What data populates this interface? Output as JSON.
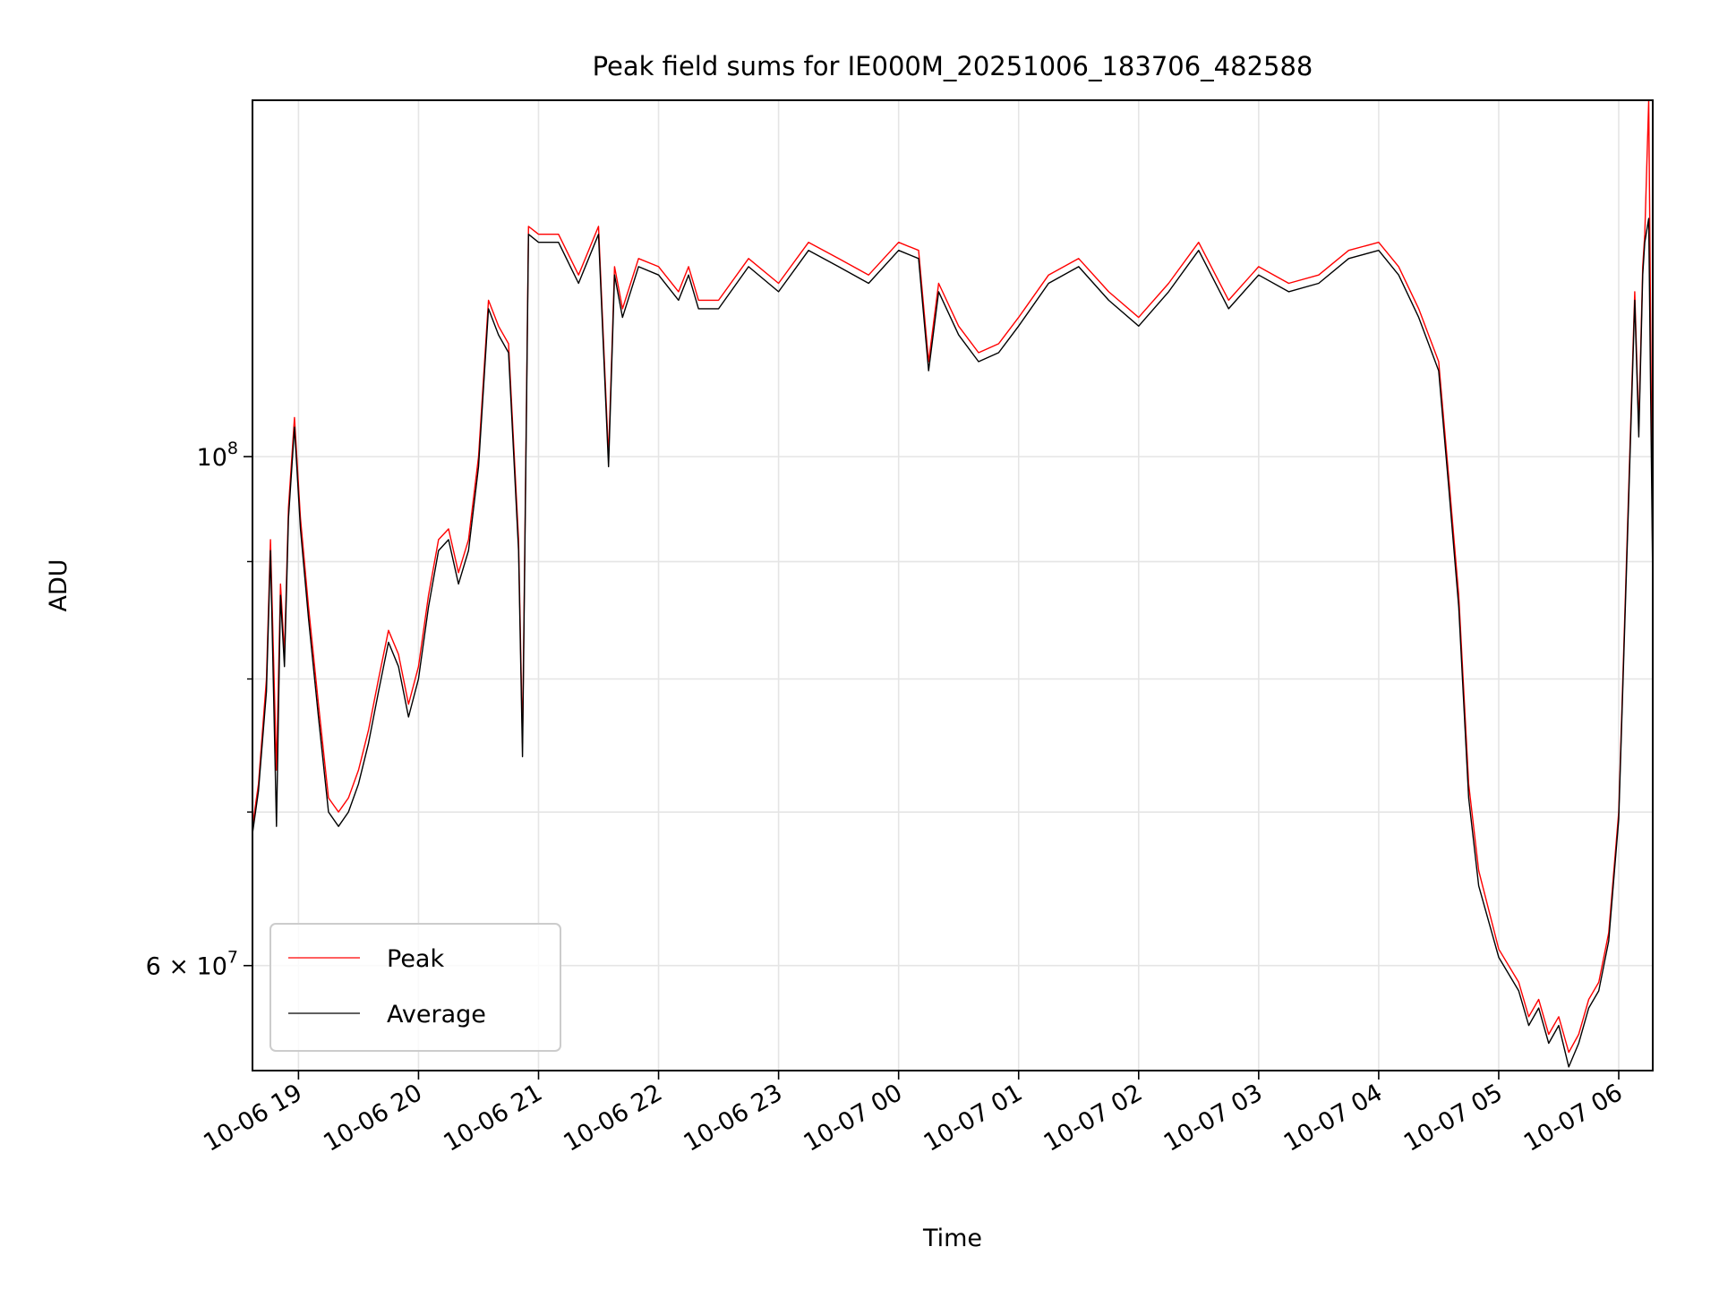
{
  "chart_data": {
    "type": "line",
    "title": "Peak field sums for IE000M_20251006_183706_482588",
    "xlabel": "Time",
    "ylabel": "ADU",
    "y_scale": "log",
    "xlim": [
      "2025-10-06 18:37",
      "2025-10-07 06:17"
    ],
    "ylim": [
      54000000,
      143000000
    ],
    "x_ticks": [
      {
        "value": "2025-10-06 19:00",
        "label": "10-06 19"
      },
      {
        "value": "2025-10-06 20:00",
        "label": "10-06 20"
      },
      {
        "value": "2025-10-06 21:00",
        "label": "10-06 21"
      },
      {
        "value": "2025-10-06 22:00",
        "label": "10-06 22"
      },
      {
        "value": "2025-10-06 23:00",
        "label": "10-06 23"
      },
      {
        "value": "2025-10-07 00:00",
        "label": "10-07 00"
      },
      {
        "value": "2025-10-07 01:00",
        "label": "10-07 01"
      },
      {
        "value": "2025-10-07 02:00",
        "label": "10-07 02"
      },
      {
        "value": "2025-10-07 03:00",
        "label": "10-07 03"
      },
      {
        "value": "2025-10-07 04:00",
        "label": "10-07 04"
      },
      {
        "value": "2025-10-07 05:00",
        "label": "10-07 05"
      },
      {
        "value": "2025-10-07 06:00",
        "label": "10-07 06"
      }
    ],
    "y_major_ticks": [
      {
        "value": 60000000,
        "base": "6 × 10",
        "exp": "7"
      },
      {
        "value": 100000000,
        "base": "10",
        "exp": "8"
      }
    ],
    "y_minor_ticks": [
      70000000,
      80000000,
      90000000
    ],
    "grid": true,
    "legend": {
      "placement": "lower-left",
      "entries": [
        "Peak",
        "Average"
      ]
    },
    "colors": {
      "Peak": "#ff0000",
      "Average": "#000000",
      "grid": "#e5e5e5"
    },
    "series": [
      {
        "name": "Peak",
        "x": [
          "2025-10-06 18:37",
          "2025-10-06 18:40",
          "2025-10-06 18:44",
          "2025-10-06 18:46",
          "2025-10-06 18:49",
          "2025-10-06 18:51",
          "2025-10-06 18:53",
          "2025-10-06 18:55",
          "2025-10-06 18:58",
          "2025-10-06 19:01",
          "2025-10-06 19:05",
          "2025-10-06 19:10",
          "2025-10-06 19:15",
          "2025-10-06 19:20",
          "2025-10-06 19:25",
          "2025-10-06 19:30",
          "2025-10-06 19:35",
          "2025-10-06 19:40",
          "2025-10-06 19:45",
          "2025-10-06 19:50",
          "2025-10-06 19:55",
          "2025-10-06 20:00",
          "2025-10-06 20:05",
          "2025-10-06 20:10",
          "2025-10-06 20:15",
          "2025-10-06 20:20",
          "2025-10-06 20:25",
          "2025-10-06 20:30",
          "2025-10-06 20:35",
          "2025-10-06 20:40",
          "2025-10-06 20:45",
          "2025-10-06 20:50",
          "2025-10-06 20:52",
          "2025-10-06 20:55",
          "2025-10-06 21:00",
          "2025-10-06 21:10",
          "2025-10-06 21:20",
          "2025-10-06 21:30",
          "2025-10-06 21:35",
          "2025-10-06 21:38",
          "2025-10-06 21:42",
          "2025-10-06 21:50",
          "2025-10-06 22:00",
          "2025-10-06 22:10",
          "2025-10-06 22:15",
          "2025-10-06 22:20",
          "2025-10-06 22:30",
          "2025-10-06 22:45",
          "2025-10-06 23:00",
          "2025-10-06 23:15",
          "2025-10-06 23:30",
          "2025-10-06 23:45",
          "2025-10-07 00:00",
          "2025-10-07 00:10",
          "2025-10-07 00:15",
          "2025-10-07 00:20",
          "2025-10-07 00:30",
          "2025-10-07 00:40",
          "2025-10-07 00:50",
          "2025-10-07 01:00",
          "2025-10-07 01:15",
          "2025-10-07 01:30",
          "2025-10-07 01:45",
          "2025-10-07 02:00",
          "2025-10-07 02:15",
          "2025-10-07 02:30",
          "2025-10-07 02:45",
          "2025-10-07 03:00",
          "2025-10-07 03:15",
          "2025-10-07 03:30",
          "2025-10-07 03:45",
          "2025-10-07 04:00",
          "2025-10-07 04:10",
          "2025-10-07 04:20",
          "2025-10-07 04:30",
          "2025-10-07 04:35",
          "2025-10-07 04:40",
          "2025-10-07 04:45",
          "2025-10-07 04:50",
          "2025-10-07 05:00",
          "2025-10-07 05:10",
          "2025-10-07 05:15",
          "2025-10-07 05:20",
          "2025-10-07 05:25",
          "2025-10-07 05:30",
          "2025-10-07 05:35",
          "2025-10-07 05:40",
          "2025-10-07 05:45",
          "2025-10-07 05:50",
          "2025-10-07 05:55",
          "2025-10-07 06:00",
          "2025-10-07 06:05",
          "2025-10-07 06:08",
          "2025-10-07 06:10",
          "2025-10-07 06:12",
          "2025-10-07 06:13",
          "2025-10-07 06:15",
          "2025-10-07 06:17"
        ],
        "y": [
          69000000,
          72000000,
          80000000,
          92000000,
          73000000,
          88000000,
          82000000,
          95000000,
          104000000,
          94000000,
          86000000,
          78000000,
          71000000,
          70000000,
          71000000,
          73000000,
          76000000,
          80000000,
          84000000,
          82000000,
          78000000,
          81000000,
          87000000,
          92000000,
          93000000,
          89000000,
          92000000,
          100000000,
          117000000,
          114000000,
          112000000,
          92000000,
          75000000,
          126000000,
          125000000,
          125000000,
          120000000,
          126000000,
          100000000,
          121000000,
          116000000,
          122000000,
          121000000,
          118000000,
          121000000,
          117000000,
          117000000,
          122000000,
          119000000,
          124000000,
          122000000,
          120000000,
          124000000,
          123000000,
          110000000,
          119000000,
          114000000,
          111000000,
          112000000,
          115000000,
          120000000,
          122000000,
          118000000,
          115000000,
          119000000,
          124000000,
          117000000,
          121000000,
          119000000,
          120000000,
          123000000,
          124000000,
          121000000,
          116000000,
          110000000,
          98000000,
          87000000,
          72000000,
          66000000,
          61000000,
          59000000,
          57000000,
          58000000,
          56000000,
          57000000,
          55000000,
          56000000,
          58000000,
          59000000,
          62000000,
          70000000,
          97000000,
          118000000,
          103000000,
          121000000,
          125000000,
          143000000,
          89000000
        ]
      },
      {
        "name": "Average",
        "x": [
          "2025-10-06 18:37",
          "2025-10-06 18:40",
          "2025-10-06 18:44",
          "2025-10-06 18:46",
          "2025-10-06 18:49",
          "2025-10-06 18:51",
          "2025-10-06 18:53",
          "2025-10-06 18:55",
          "2025-10-06 18:58",
          "2025-10-06 19:01",
          "2025-10-06 19:05",
          "2025-10-06 19:10",
          "2025-10-06 19:15",
          "2025-10-06 19:20",
          "2025-10-06 19:25",
          "2025-10-06 19:30",
          "2025-10-06 19:35",
          "2025-10-06 19:40",
          "2025-10-06 19:45",
          "2025-10-06 19:50",
          "2025-10-06 19:55",
          "2025-10-06 20:00",
          "2025-10-06 20:05",
          "2025-10-06 20:10",
          "2025-10-06 20:15",
          "2025-10-06 20:20",
          "2025-10-06 20:25",
          "2025-10-06 20:30",
          "2025-10-06 20:35",
          "2025-10-06 20:40",
          "2025-10-06 20:45",
          "2025-10-06 20:50",
          "2025-10-06 20:52",
          "2025-10-06 20:55",
          "2025-10-06 21:00",
          "2025-10-06 21:10",
          "2025-10-06 21:20",
          "2025-10-06 21:30",
          "2025-10-06 21:35",
          "2025-10-06 21:38",
          "2025-10-06 21:42",
          "2025-10-06 21:50",
          "2025-10-06 22:00",
          "2025-10-06 22:10",
          "2025-10-06 22:15",
          "2025-10-06 22:20",
          "2025-10-06 22:30",
          "2025-10-06 22:45",
          "2025-10-06 23:00",
          "2025-10-06 23:15",
          "2025-10-06 23:30",
          "2025-10-06 23:45",
          "2025-10-07 00:00",
          "2025-10-07 00:10",
          "2025-10-07 00:15",
          "2025-10-07 00:20",
          "2025-10-07 00:30",
          "2025-10-07 00:40",
          "2025-10-07 00:50",
          "2025-10-07 01:00",
          "2025-10-07 01:15",
          "2025-10-07 01:30",
          "2025-10-07 01:45",
          "2025-10-07 02:00",
          "2025-10-07 02:15",
          "2025-10-07 02:30",
          "2025-10-07 02:45",
          "2025-10-07 03:00",
          "2025-10-07 03:15",
          "2025-10-07 03:30",
          "2025-10-07 03:45",
          "2025-10-07 04:00",
          "2025-10-07 04:10",
          "2025-10-07 04:20",
          "2025-10-07 04:30",
          "2025-10-07 04:35",
          "2025-10-07 04:40",
          "2025-10-07 04:45",
          "2025-10-07 04:50",
          "2025-10-07 05:00",
          "2025-10-07 05:10",
          "2025-10-07 05:15",
          "2025-10-07 05:20",
          "2025-10-07 05:25",
          "2025-10-07 05:30",
          "2025-10-07 05:35",
          "2025-10-07 05:40",
          "2025-10-07 05:45",
          "2025-10-07 05:50",
          "2025-10-07 05:55",
          "2025-10-07 06:00",
          "2025-10-07 06:05",
          "2025-10-07 06:08",
          "2025-10-07 06:10",
          "2025-10-07 06:12",
          "2025-10-07 06:13",
          "2025-10-07 06:15",
          "2025-10-07 06:17"
        ],
        "y": [
          68500000,
          71500000,
          79000000,
          91000000,
          69000000,
          87000000,
          81000000,
          94000000,
          103000000,
          93000000,
          85000000,
          77000000,
          70000000,
          69000000,
          70000000,
          72000000,
          75000000,
          79000000,
          83000000,
          81000000,
          77000000,
          80000000,
          86000000,
          91000000,
          92000000,
          88000000,
          91000000,
          99000000,
          116000000,
          113000000,
          111000000,
          91000000,
          74000000,
          125000000,
          124000000,
          124000000,
          119000000,
          125000000,
          99000000,
          120000000,
          115000000,
          121000000,
          120000000,
          117000000,
          120000000,
          116000000,
          116000000,
          121000000,
          118000000,
          123000000,
          121000000,
          119000000,
          123000000,
          122000000,
          109000000,
          118000000,
          113000000,
          110000000,
          111000000,
          114000000,
          119000000,
          121000000,
          117000000,
          114000000,
          118000000,
          123000000,
          116000000,
          120000000,
          118000000,
          119000000,
          122000000,
          123000000,
          120000000,
          115000000,
          109000000,
          97000000,
          86000000,
          71000000,
          65000000,
          60500000,
          58500000,
          56500000,
          57500000,
          55500000,
          56500000,
          54200000,
          55500000,
          57500000,
          58500000,
          61500000,
          69500000,
          96000000,
          117000000,
          102000000,
          120000000,
          124000000,
          127000000,
          88000000
        ]
      }
    ]
  }
}
